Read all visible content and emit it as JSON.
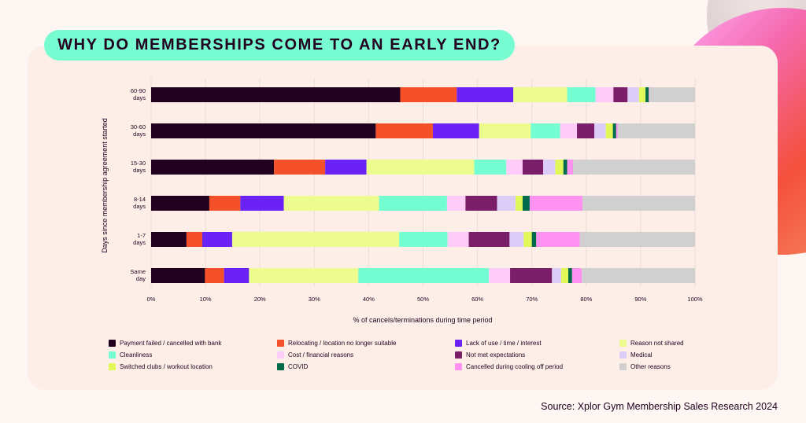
{
  "title": "WHY DO MEMBERSHIPS COME TO AN EARLY END?",
  "source": "Source: Xplor Gym Membership Sales Research 2024",
  "chart_data": {
    "type": "bar",
    "orientation": "horizontal",
    "stacked": true,
    "xlabel": "% of cancels/terminations during time period",
    "ylabel": "Days since membership agreement started",
    "xlim": [
      0,
      100
    ],
    "xticks": [
      "0%",
      "10%",
      "20%",
      "30%",
      "40%",
      "50%",
      "60%",
      "70%",
      "80%",
      "90%",
      "100%"
    ],
    "grid": "vertical",
    "legend_position": "bottom",
    "categories": [
      [
        "60-90",
        "days"
      ],
      [
        "30-60",
        "days"
      ],
      [
        "15-30",
        "days"
      ],
      [
        "8-14",
        "days"
      ],
      [
        "1-7",
        "days"
      ],
      [
        "Same",
        "day"
      ]
    ],
    "series": [
      {
        "name": "Payment failed / cancelled with bank",
        "color": "#22001f",
        "values": [
          45.8,
          41.3,
          22.6,
          10.7,
          6.5,
          9.9
        ]
      },
      {
        "name": "Relocating / location no longer suitable",
        "color": "#f4502a",
        "values": [
          10.4,
          10.5,
          9.4,
          5.7,
          2.9,
          3.5
        ]
      },
      {
        "name": "Lack of use / time / interest",
        "color": "#6b23f5",
        "values": [
          10.4,
          8.5,
          7.6,
          8.0,
          5.5,
          4.6
        ]
      },
      {
        "name": "Reason not shared",
        "color": "#ecfc8f",
        "values": [
          9.9,
          9.5,
          19.8,
          17.5,
          30.7,
          20.1
        ]
      },
      {
        "name": "Cleanliness",
        "color": "#74fdd0",
        "values": [
          5.2,
          5.4,
          5.9,
          12.5,
          8.9,
          24.0
        ]
      },
      {
        "name": "Cost / financial reasons",
        "color": "#fdccf9",
        "values": [
          3.3,
          3.1,
          3.0,
          3.4,
          3.9,
          3.9
        ]
      },
      {
        "name": "Not met expectations",
        "color": "#7a1e6a",
        "values": [
          2.6,
          3.2,
          3.8,
          5.8,
          7.5,
          7.7
        ]
      },
      {
        "name": "Medical",
        "color": "#dccdf8",
        "values": [
          2.1,
          2.1,
          2.2,
          3.4,
          2.6,
          1.7
        ]
      },
      {
        "name": "Switched clubs / workout location",
        "color": "#e1f85a",
        "values": [
          1.2,
          1.3,
          1.5,
          1.3,
          1.5,
          1.3
        ]
      },
      {
        "name": "COVID",
        "color": "#006b4a",
        "values": [
          0.6,
          0.6,
          0.7,
          1.3,
          0.8,
          0.7
        ]
      },
      {
        "name": "Cancelled during cooling off period",
        "color": "#ff91f1",
        "values": [
          0.1,
          0.3,
          1.1,
          9.7,
          8.0,
          1.8
        ]
      },
      {
        "name": "Other reasons",
        "color": "#d0d0d0",
        "values": [
          8.4,
          14.2,
          22.4,
          20.7,
          21.2,
          20.8
        ]
      }
    ]
  }
}
